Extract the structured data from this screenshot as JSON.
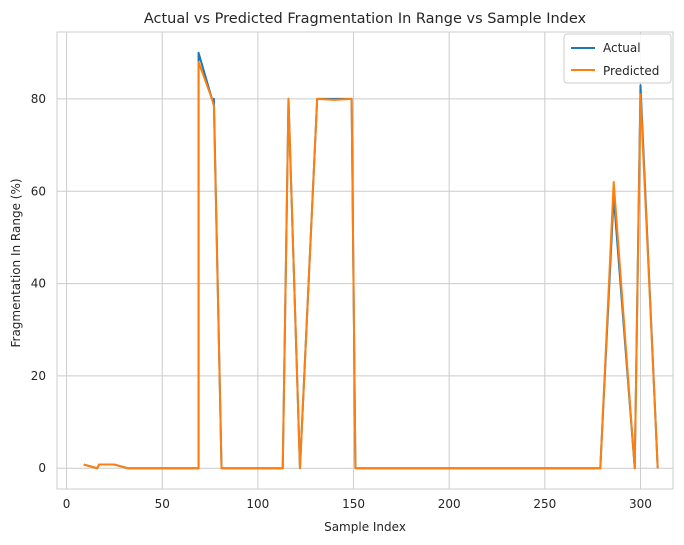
{
  "chart_data": {
    "type": "line",
    "title": "Actual vs Predicted Fragmentation In Range vs Sample Index",
    "xlabel": "Sample Index",
    "ylabel": "Fragmentation In Range (%)",
    "xlim": [
      -5,
      317
    ],
    "ylim": [
      -4.5,
      94.5
    ],
    "xticks": [
      0,
      50,
      100,
      150,
      200,
      250,
      300
    ],
    "yticks": [
      0,
      20,
      40,
      60,
      80
    ],
    "grid": true,
    "legend_position": "top-right",
    "series": [
      {
        "name": "Actual",
        "color": "#1f77b4",
        "x": [
          9,
          16,
          17,
          25,
          32,
          50,
          69,
          69,
          76,
          77,
          81,
          113,
          116,
          122,
          131,
          140,
          149,
          151,
          200,
          279,
          286,
          297,
          300,
          309
        ],
        "y": [
          0.8,
          0,
          0.8,
          0.8,
          0,
          0,
          0,
          90,
          80,
          80,
          0,
          0,
          80,
          0,
          80,
          80,
          80,
          0,
          0,
          0,
          59,
          0,
          83,
          0
        ]
      },
      {
        "name": "Predicted",
        "color": "#ff7f0e",
        "x": [
          9,
          16,
          17,
          25,
          32,
          50,
          69,
          69,
          76,
          77,
          81,
          113,
          116,
          122,
          131,
          140,
          149,
          151,
          200,
          279,
          286,
          297,
          300,
          309
        ],
        "y": [
          0.8,
          0,
          0.8,
          0.8,
          0,
          0,
          0,
          88,
          80,
          78.5,
          0,
          0,
          80,
          0,
          80,
          79.8,
          80,
          0,
          0,
          0,
          62,
          0,
          81,
          0
        ]
      }
    ]
  }
}
